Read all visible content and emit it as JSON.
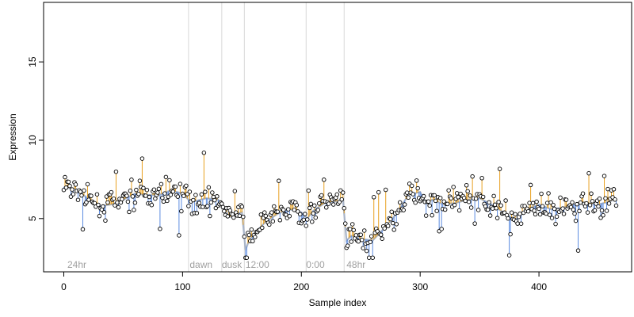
{
  "chart_data": {
    "type": "scatter",
    "xlabel": "Sample index",
    "ylabel": "Expression",
    "xlim": [
      -17,
      478
    ],
    "ylim": [
      1.6,
      18.8
    ],
    "x_ticks": [
      0,
      100,
      200,
      300,
      400
    ],
    "y_ticks": [
      5,
      10,
      15
    ],
    "grid": false,
    "colors": {
      "smooth_line": "#a8b4c8",
      "stem_up": "#e8a020",
      "stem_down": "#5b8be0",
      "point_fill": "#ffffff",
      "point_stroke": "#000000",
      "divider": "#d8d8d8",
      "phase_label": "#a0a0a0"
    },
    "phases": [
      {
        "label": "24hr",
        "x": 3,
        "divider_at": null
      },
      {
        "label": "dawn",
        "x": 106,
        "divider_at": 105
      },
      {
        "label": "dusk",
        "x": 133,
        "divider_at": 133
      },
      {
        "label": "12:00",
        "x": 153,
        "divider_at": 152
      },
      {
        "label": "0:00",
        "x": 204,
        "divider_at": 204
      },
      {
        "label": "48hr",
        "x": 238,
        "divider_at": 236
      }
    ],
    "smooth_anchors": [
      [
        0,
        7.0
      ],
      [
        10,
        6.9
      ],
      [
        20,
        6.3
      ],
      [
        30,
        5.8
      ],
      [
        40,
        5.9
      ],
      [
        50,
        6.2
      ],
      [
        60,
        6.6
      ],
      [
        70,
        6.5
      ],
      [
        80,
        6.5
      ],
      [
        90,
        6.8
      ],
      [
        100,
        6.6
      ],
      [
        105,
        6.2
      ],
      [
        110,
        6.1
      ],
      [
        120,
        6.3
      ],
      [
        130,
        6.2
      ],
      [
        135,
        5.6
      ],
      [
        140,
        5.1
      ],
      [
        145,
        5.3
      ],
      [
        150,
        5.4
      ],
      [
        153,
        3.0
      ],
      [
        156,
        3.6
      ],
      [
        160,
        4.0
      ],
      [
        170,
        4.8
      ],
      [
        180,
        5.3
      ],
      [
        190,
        5.6
      ],
      [
        200,
        5.4
      ],
      [
        205,
        5.0
      ],
      [
        210,
        5.5
      ],
      [
        220,
        6.0
      ],
      [
        230,
        6.1
      ],
      [
        235,
        6.2
      ],
      [
        238,
        3.6
      ],
      [
        242,
        3.9
      ],
      [
        250,
        3.7
      ],
      [
        260,
        3.6
      ],
      [
        270,
        4.4
      ],
      [
        280,
        5.3
      ],
      [
        290,
        6.5
      ],
      [
        300,
        6.7
      ],
      [
        305,
        6.0
      ],
      [
        310,
        6.2
      ],
      [
        320,
        5.9
      ],
      [
        330,
        6.0
      ],
      [
        340,
        6.2
      ],
      [
        350,
        6.3
      ],
      [
        360,
        5.9
      ],
      [
        370,
        5.4
      ],
      [
        380,
        4.9
      ],
      [
        390,
        5.6
      ],
      [
        400,
        5.9
      ],
      [
        410,
        5.6
      ],
      [
        420,
        5.7
      ],
      [
        430,
        5.9
      ],
      [
        440,
        6.0
      ],
      [
        450,
        5.9
      ],
      [
        460,
        6.1
      ],
      [
        465,
        6.3
      ]
    ],
    "n_points": 466,
    "seed": 7
  }
}
